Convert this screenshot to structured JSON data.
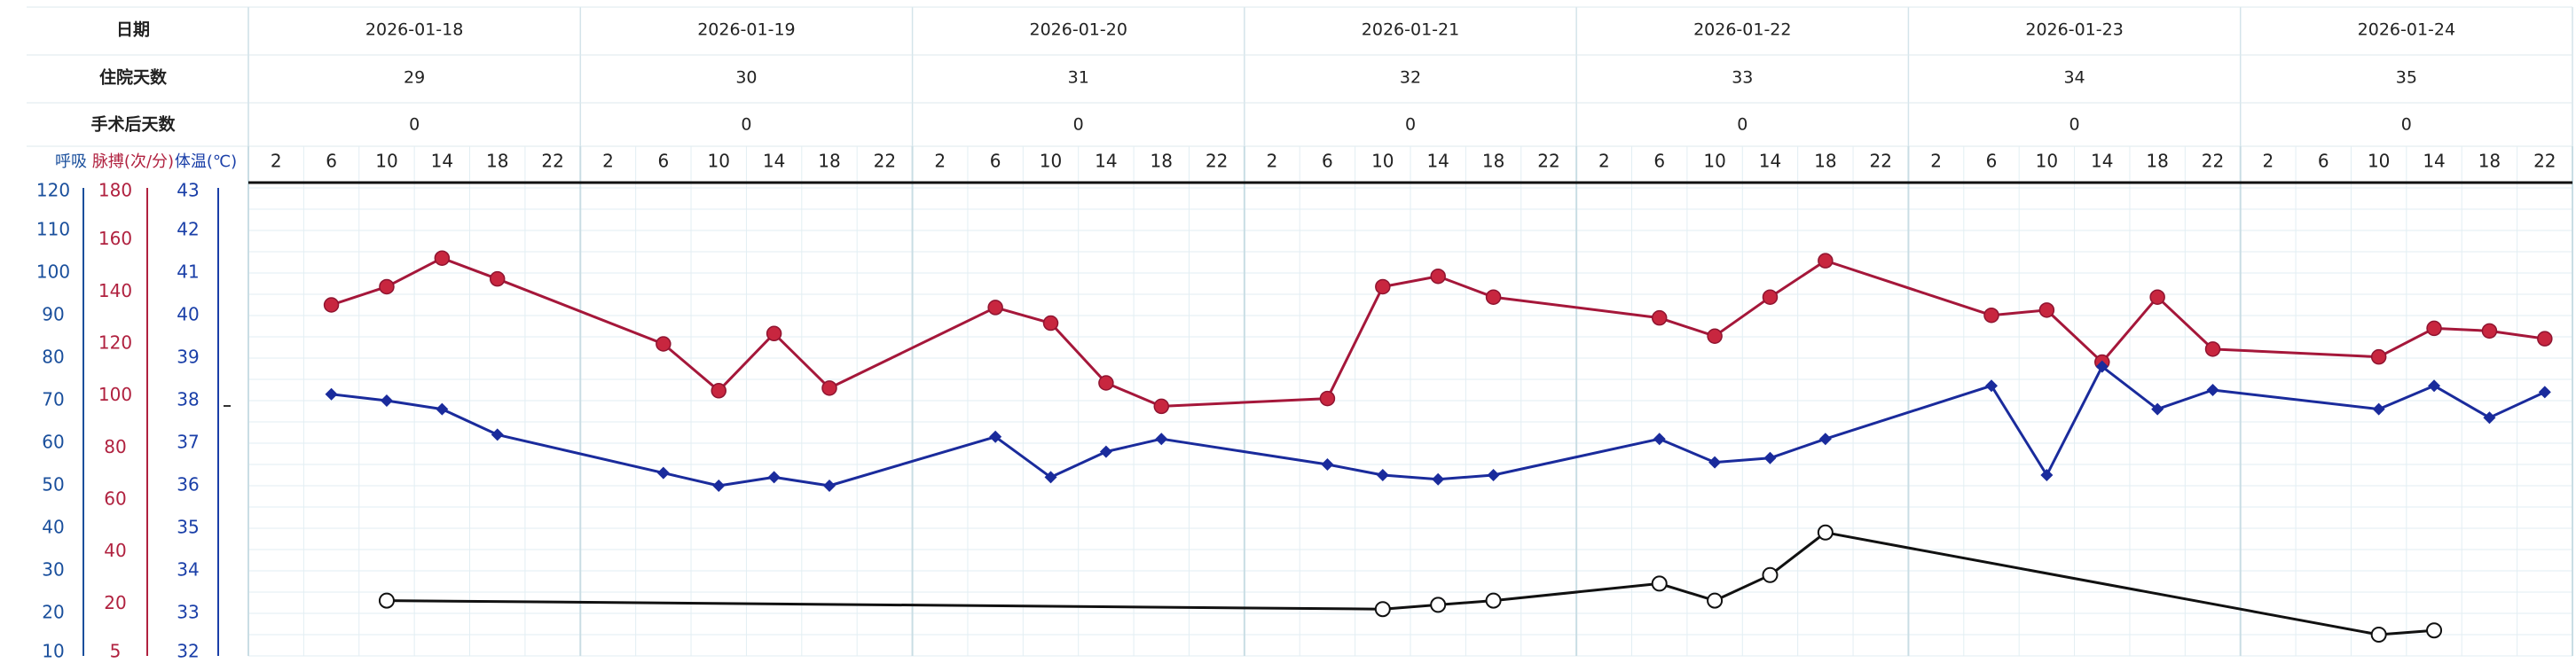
{
  "chart_data": {
    "type": "line",
    "header": {
      "rows": [
        {
          "label": "日期",
          "values": [
            "2026-01-18",
            "2026-01-19",
            "2026-01-20",
            "2026-01-21",
            "2026-01-22",
            "2026-01-23",
            "2026-01-24"
          ]
        },
        {
          "label": "住院天数",
          "values": [
            "29",
            "30",
            "31",
            "32",
            "33",
            "34",
            "35"
          ]
        },
        {
          "label": "手术后天数",
          "values": [
            "0",
            "0",
            "0",
            "0",
            "0",
            "0",
            "0"
          ]
        }
      ]
    },
    "hours": [
      "2",
      "6",
      "10",
      "14",
      "18",
      "22"
    ],
    "axes": [
      {
        "label": "呼吸",
        "color": "#1a4f9c",
        "ticks": [
          120,
          110,
          100,
          90,
          80,
          70,
          60,
          50,
          40,
          30,
          20,
          10
        ],
        "range": [
          10,
          120
        ]
      },
      {
        "label": "脉搏(次/分)",
        "color": "#b0213f",
        "ticks": [
          180,
          160,
          140,
          120,
          100,
          80,
          60,
          40,
          20,
          5
        ],
        "range": [
          0,
          180
        ]
      },
      {
        "label": "体温(℃)",
        "color": "#1a3fa8",
        "ticks": [
          43,
          42,
          41,
          40,
          39,
          38,
          37,
          36,
          35,
          34,
          33,
          32
        ],
        "range": [
          32,
          43
        ]
      }
    ],
    "series": [
      {
        "axis": 1,
        "color": "#a5173a",
        "marker": "circle",
        "points": [
          [
            1,
            135
          ],
          [
            2,
            142
          ],
          [
            3,
            153
          ],
          [
            4,
            145
          ],
          [
            7,
            120
          ],
          [
            8,
            102
          ],
          [
            9,
            124
          ],
          [
            10,
            103
          ],
          [
            13,
            134
          ],
          [
            14,
            128
          ],
          [
            15,
            105
          ],
          [
            16,
            96
          ],
          [
            19,
            99
          ],
          [
            20,
            142
          ],
          [
            21,
            146
          ],
          [
            22,
            138
          ],
          [
            25,
            130
          ],
          [
            26,
            123
          ],
          [
            27,
            138
          ],
          [
            28,
            152
          ],
          [
            31,
            131
          ],
          [
            32,
            133
          ],
          [
            33,
            113
          ],
          [
            34,
            138
          ],
          [
            35,
            118
          ],
          [
            38,
            115
          ],
          [
            39,
            126
          ],
          [
            40,
            125
          ],
          [
            41,
            122
          ]
        ]
      },
      {
        "axis": 2,
        "color": "#1a2b9c",
        "marker": "diamond",
        "points": [
          [
            1,
            38.15
          ],
          [
            2,
            38.0
          ],
          [
            3,
            37.8
          ],
          [
            4,
            37.2
          ],
          [
            7,
            36.3
          ],
          [
            8,
            36.0
          ],
          [
            9,
            36.2
          ],
          [
            10,
            36.0
          ],
          [
            13,
            37.15
          ],
          [
            14,
            36.2
          ],
          [
            15,
            36.8
          ],
          [
            16,
            37.1
          ],
          [
            19,
            36.5
          ],
          [
            20,
            36.25
          ],
          [
            21,
            36.15
          ],
          [
            22,
            36.25
          ],
          [
            25,
            37.1
          ],
          [
            26,
            36.55
          ],
          [
            27,
            36.65
          ],
          [
            28,
            37.1
          ],
          [
            31,
            38.35
          ],
          [
            32,
            36.25
          ],
          [
            33,
            38.8
          ],
          [
            34,
            37.8
          ],
          [
            35,
            38.25
          ],
          [
            38,
            37.8
          ],
          [
            39,
            38.35
          ],
          [
            40,
            37.6
          ],
          [
            41,
            38.2
          ]
        ]
      },
      {
        "axis": 0,
        "color": "#111111",
        "marker": "open-circle",
        "points": [
          [
            2,
            23
          ],
          [
            20,
            21
          ],
          [
            21,
            22
          ],
          [
            22,
            23
          ],
          [
            25,
            27
          ],
          [
            26,
            23
          ],
          [
            27,
            29
          ],
          [
            28,
            39
          ],
          [
            38,
            15
          ],
          [
            39,
            16
          ]
        ]
      }
    ]
  }
}
